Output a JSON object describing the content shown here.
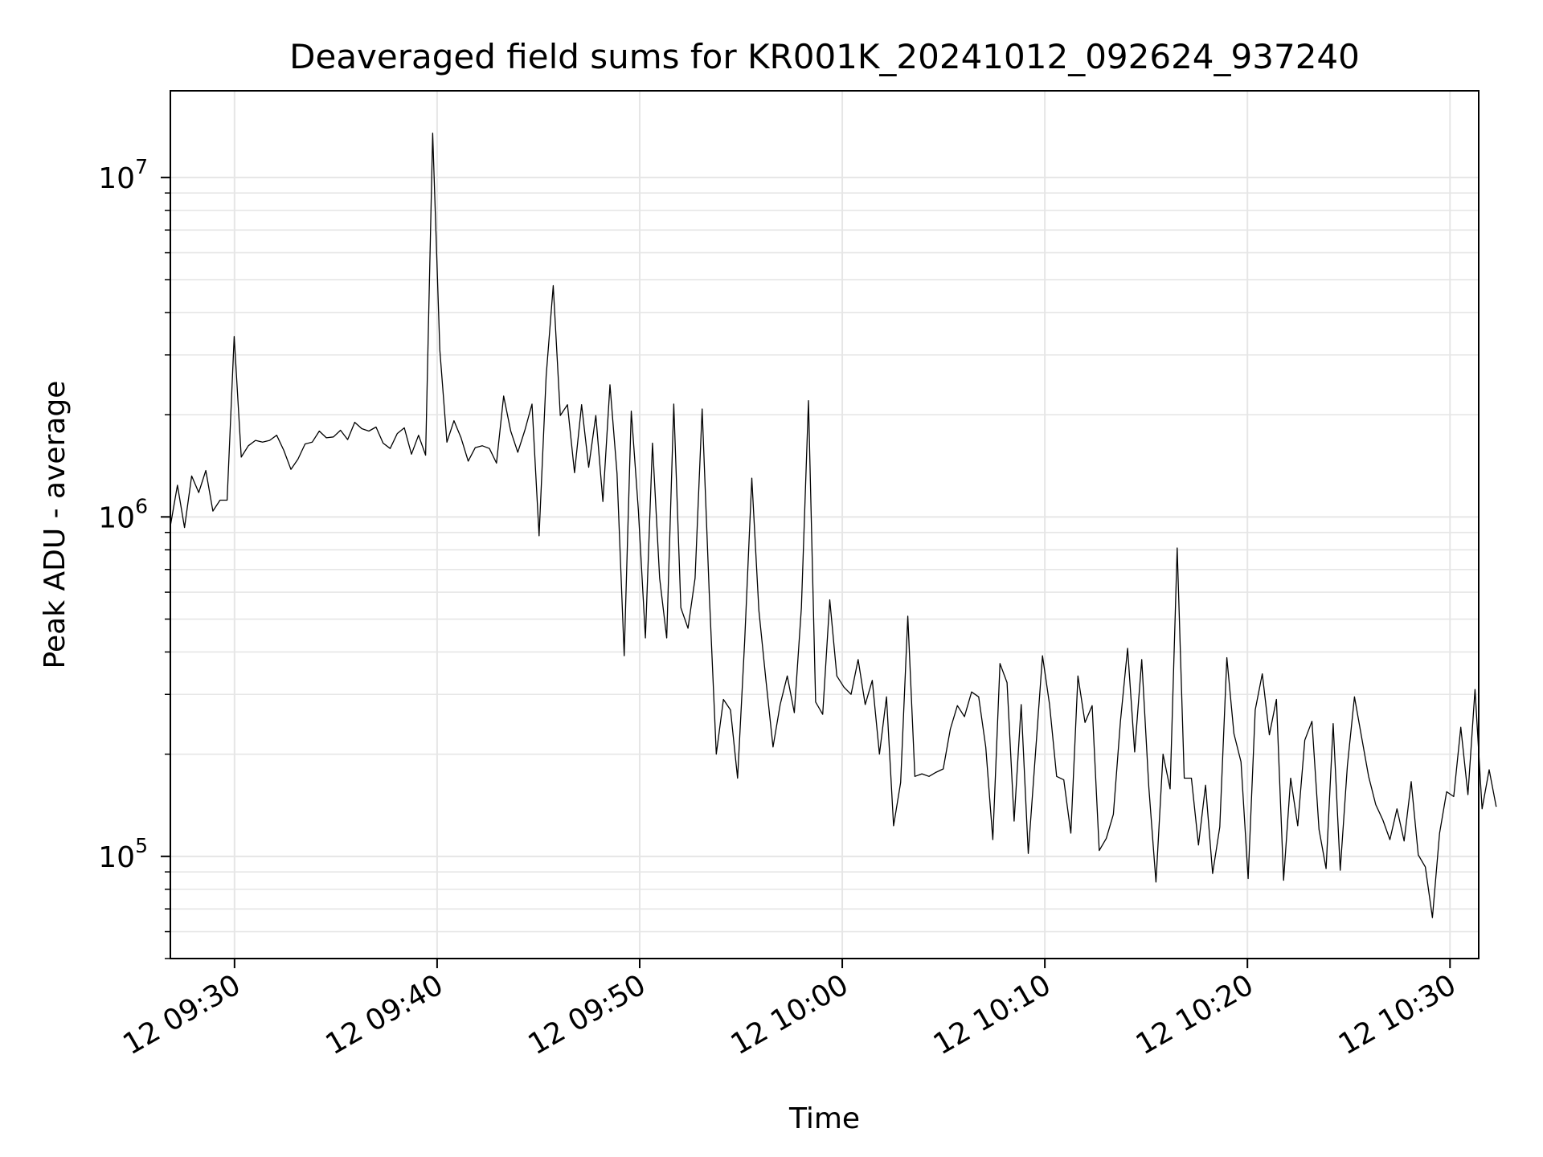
{
  "chart_data": {
    "type": "line",
    "title": "Deaveraged field sums for KR001K_20241012_092624_937240",
    "xlabel": "Time",
    "ylabel": "Peak ADU - average",
    "yscale": "log",
    "ylim": [
      50000,
      18000000
    ],
    "xlim": [
      "2024-10-12T09:26:50",
      "2024-10-12T10:31:25"
    ],
    "x_ticks": [
      {
        "t": "2024-10-12T09:30:00",
        "label": "12 09:30"
      },
      {
        "t": "2024-10-12T09:40:00",
        "label": "12 09:40"
      },
      {
        "t": "2024-10-12T09:50:00",
        "label": "12 09:50"
      },
      {
        "t": "2024-10-12T10:00:00",
        "label": "12 10:00"
      },
      {
        "t": "2024-10-12T10:10:00",
        "label": "12 10:10"
      },
      {
        "t": "2024-10-12T10:20:00",
        "label": "12 10:20"
      },
      {
        "t": "2024-10-12T10:30:00",
        "label": "12 10:30"
      }
    ],
    "y_ticks": [
      {
        "value": 100000,
        "base": "10",
        "exp": "5"
      },
      {
        "value": 1000000,
        "base": "10",
        "exp": "6"
      },
      {
        "value": 10000000,
        "base": "10",
        "exp": "7"
      }
    ],
    "grid": true,
    "line_color": "#000000",
    "grid_color": "#e6e6e6",
    "series": [
      {
        "x_start": "2024-10-12T09:26:50",
        "x_step_seconds": 21,
        "values": [
          940000,
          1240000,
          930000,
          1320000,
          1180000,
          1370000,
          1040000,
          1120000,
          1120000,
          3400000,
          1500000,
          1620000,
          1680000,
          1660000,
          1680000,
          1740000,
          1570000,
          1380000,
          1480000,
          1640000,
          1660000,
          1790000,
          1710000,
          1720000,
          1800000,
          1690000,
          1900000,
          1820000,
          1790000,
          1840000,
          1650000,
          1590000,
          1760000,
          1830000,
          1530000,
          1740000,
          1520000,
          13500000,
          3100000,
          1660000,
          1920000,
          1710000,
          1460000,
          1600000,
          1620000,
          1590000,
          1440000,
          2270000,
          1790000,
          1550000,
          1800000,
          2150000,
          880000,
          2600000,
          4800000,
          1990000,
          2140000,
          1350000,
          2140000,
          1400000,
          1990000,
          1110000,
          2450000,
          1340000,
          390000,
          2050000,
          1050000,
          440000,
          1650000,
          660000,
          440000,
          2150000,
          540000,
          470000,
          660000,
          2080000,
          600000,
          200000,
          290000,
          270000,
          170000,
          430000,
          1300000,
          530000,
          330000,
          210000,
          280000,
          340000,
          265000,
          540000,
          2200000,
          285000,
          262000,
          570000,
          340000,
          315000,
          300000,
          380000,
          280000,
          330000,
          200000,
          295000,
          123000,
          165000,
          510000,
          172000,
          175000,
          172000,
          177000,
          181000,
          237000,
          278000,
          258000,
          305000,
          295000,
          210000,
          112000,
          370000,
          325000,
          127000,
          280000,
          102000,
          200000,
          390000,
          280000,
          172000,
          168000,
          117000,
          340000,
          248000,
          278000,
          104000,
          113000,
          133000,
          250000,
          410000,
          203000,
          380000,
          160000,
          84000,
          200000,
          158000,
          810000,
          170000,
          170000,
          108000,
          162000,
          89000,
          122000,
          385000,
          230000,
          190000,
          86000,
          270000,
          345000,
          228000,
          290000,
          85000,
          170000,
          123000,
          220000,
          250000,
          120000,
          92000,
          246000,
          91000,
          185000,
          295000,
          225000,
          172000,
          142000,
          128000,
          112000,
          138000,
          111000,
          166000,
          101000,
          93000,
          66000,
          117000,
          155000,
          150000,
          240000,
          152000,
          310000,
          138000,
          180000,
          140000
        ]
      }
    ]
  }
}
